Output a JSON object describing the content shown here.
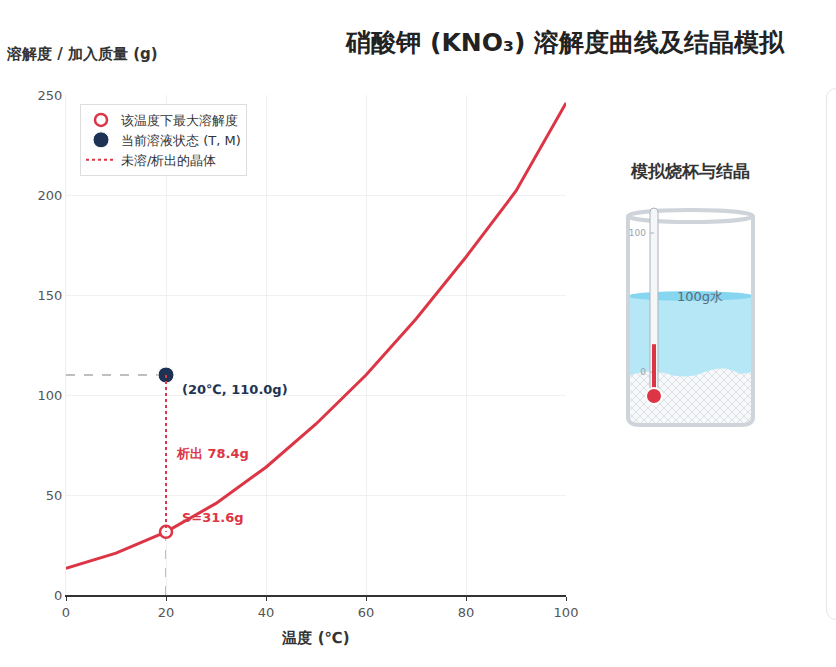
{
  "chart_data": {
    "type": "line",
    "title": "硝酸钾 (KNO₃) 溶解度曲线及结晶模拟",
    "x_label": "温度 (℃)",
    "y_label": "溶解度 / 加入质量 (g)",
    "xlim": [
      0,
      100
    ],
    "xticks": [
      0,
      20,
      40,
      60,
      80,
      100
    ],
    "ylim": [
      0,
      250
    ],
    "yticks": [
      0,
      50,
      100,
      150,
      200,
      250
    ],
    "grid": true,
    "legend": "upper left",
    "data_labels": true,
    "series": [
      {
        "type": "line",
        "color": "#dc3545",
        "line_style": "solid",
        "x": [
          0,
          10,
          20,
          30,
          40,
          50,
          60,
          70,
          80,
          90,
          100
        ],
        "values": [
          13.3,
          20.9,
          31.6,
          45.8,
          63.9,
          85.5,
          110,
          138,
          169,
          202,
          246
        ]
      },
      {
        "name": "该温度下最大溶解度",
        "type": "scatter",
        "marker": "hollow",
        "color": "#dc3545",
        "x": [
          20
        ],
        "values": [
          31.6
        ],
        "value_labels": [
          "S=31.6g"
        ]
      },
      {
        "name": "当前溶液状态 (T, M)",
        "type": "scatter",
        "marker": "filled",
        "color": "#1e3354",
        "x": [
          20
        ],
        "values": [
          110
        ],
        "value_labels": [
          "(20℃, 110.0g)"
        ]
      },
      {
        "name": "未溶/析出的晶体",
        "type": "line",
        "line_style": "dotted",
        "color": "#dc3545",
        "x": [
          20,
          20
        ],
        "values": [
          110,
          31.6
        ],
        "label": "析出 78.4g"
      }
    ]
  },
  "beaker": {
    "title": "模拟烧杯与结晶",
    "water_label": "100g水",
    "thermometer_ticks": [
      0,
      100
    ]
  }
}
